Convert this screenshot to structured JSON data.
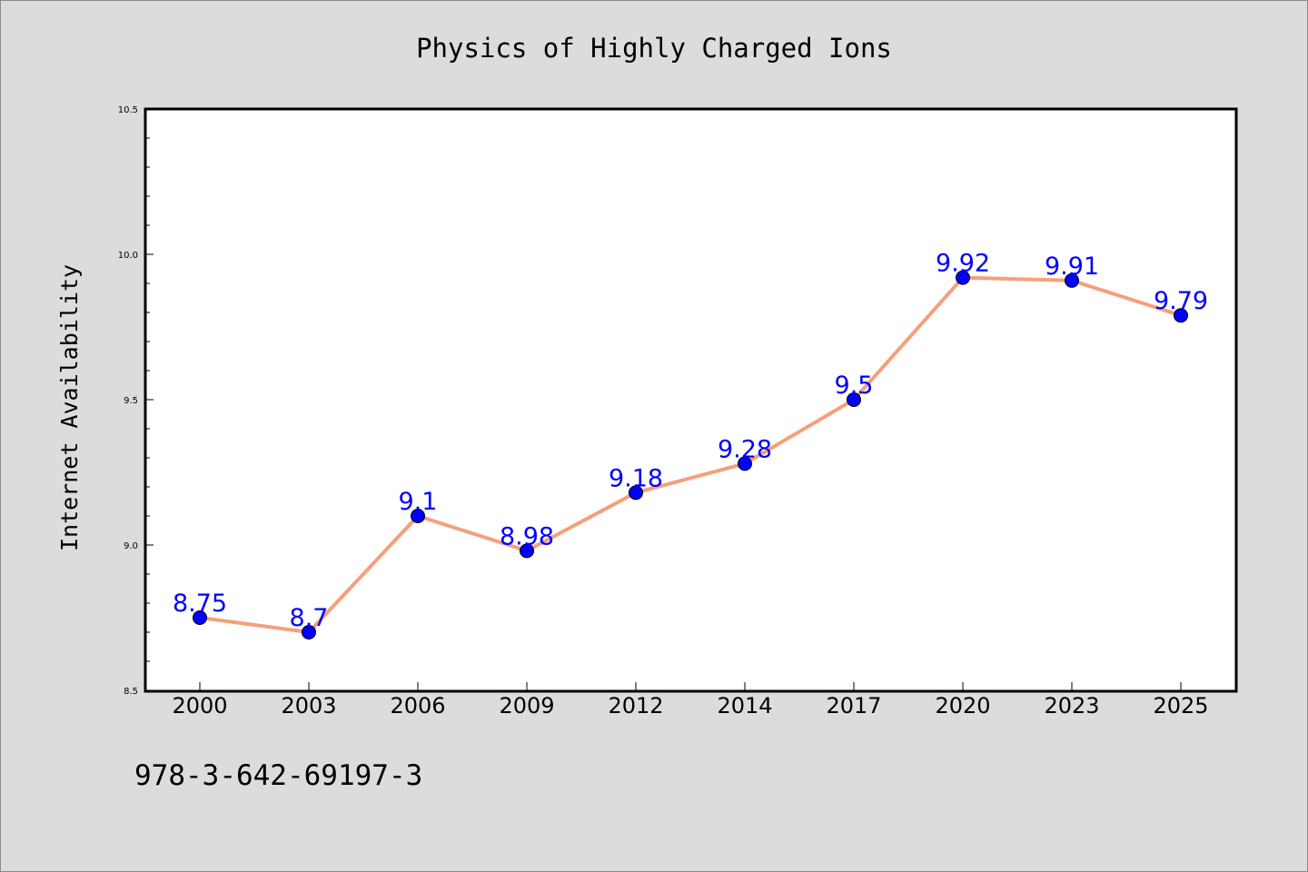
{
  "chart_data": {
    "type": "line",
    "title": "Physics of Highly Charged Ions",
    "xlabel": "",
    "ylabel": "Internet Availability",
    "categories": [
      "2000",
      "2003",
      "2006",
      "2009",
      "2012",
      "2014",
      "2017",
      "2020",
      "2023",
      "2025"
    ],
    "series": [
      {
        "values": [
          8.75,
          8.7,
          9.1,
          8.98,
          9.18,
          9.28,
          9.5,
          9.92,
          9.91,
          9.79
        ],
        "value_labels": [
          "8.75",
          "8.7",
          "9.1",
          "8.98",
          "9.18",
          "9.28",
          "9.5",
          "9.92",
          "9.91",
          "9.79"
        ],
        "line_color": "#f4a07c",
        "marker_color": "#0000ff",
        "label_color": "#0000ff"
      }
    ],
    "ylim": [
      8.5,
      10.5
    ],
    "yticks": [
      "8.5",
      "9.0",
      "9.5",
      "10.0",
      "10.5"
    ],
    "grid": false,
    "legend": "none",
    "background_color": "#dcdcdc",
    "plot_background_color": "#ffffff"
  },
  "footer": {
    "isbn": "978-3-642-69197-3"
  }
}
